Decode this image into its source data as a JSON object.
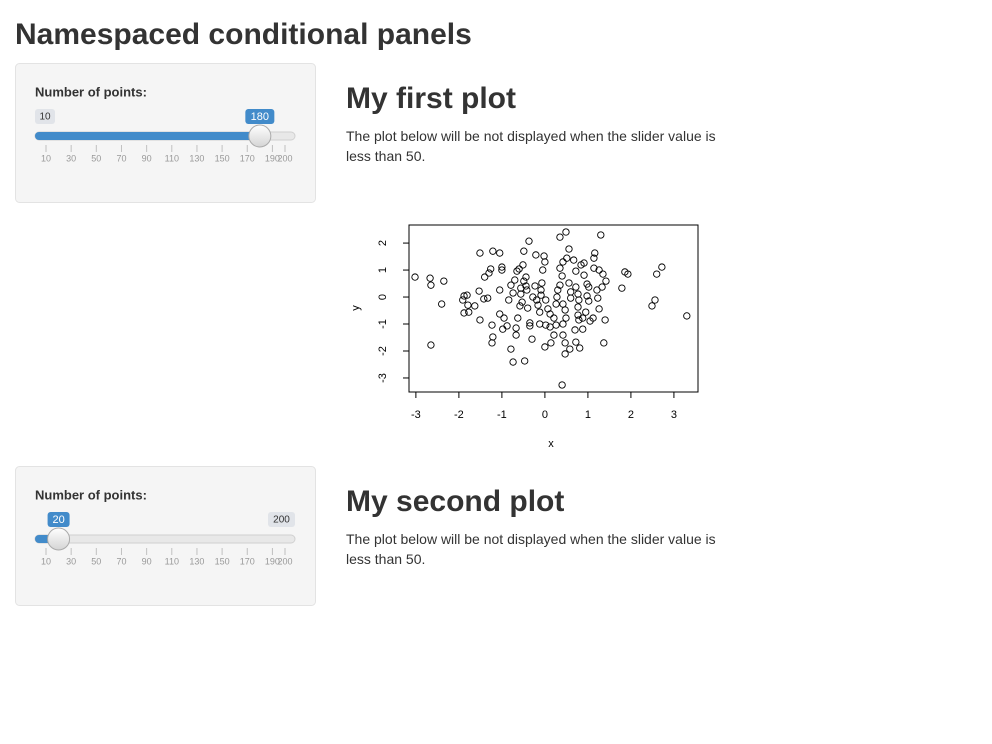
{
  "header": {
    "title": "Namespaced conditional panels"
  },
  "panels": [
    {
      "slider": {
        "label": "Number of points:",
        "min": 10,
        "max": 200,
        "value": 180,
        "ticks": [
          10,
          30,
          50,
          70,
          90,
          110,
          130,
          150,
          170,
          190,
          200
        ]
      },
      "heading": "My first plot",
      "text": "The plot below will be not displayed when the slider value is less than 50."
    },
    {
      "slider": {
        "label": "Number of points:",
        "min": 10,
        "max": 200,
        "value": 20,
        "ticks": [
          10,
          30,
          50,
          70,
          90,
          110,
          130,
          150,
          170,
          190,
          200
        ]
      },
      "heading": "My second plot",
      "text": "The plot below will be not displayed when the slider value is less than 50."
    }
  ],
  "chart_data": {
    "type": "scatter",
    "x_label": "x",
    "y_label": "y",
    "xlim": [
      -3.16,
      3.56
    ],
    "ylim": [
      -3.52,
      2.67
    ],
    "xticks": [
      -3,
      -2,
      -1,
      0,
      1,
      2,
      3
    ],
    "yticks": [
      -3,
      -2,
      -1,
      0,
      1,
      2
    ],
    "color": "#000000",
    "x": [
      -3.02,
      -2.67,
      -2.65,
      -2.35,
      -2.4,
      -2.65,
      -1.88,
      -1.81,
      -1.91,
      -1.79,
      -1.88,
      -1.77,
      -1.63,
      -1.53,
      -1.51,
      -1.21,
      -1.05,
      -1.3,
      -1.4,
      -1.26,
      -1.0,
      -1.0,
      -1.42,
      -1.33,
      -1.51,
      -1.23,
      -1.23,
      -1.21,
      -1.05,
      -0.95,
      -0.98,
      -1.05,
      -0.84,
      -0.74,
      -0.79,
      -0.7,
      -0.65,
      -0.6,
      -0.88,
      -0.74,
      -0.67,
      -0.67,
      -0.63,
      -0.58,
      -0.53,
      -0.56,
      -0.56,
      -0.49,
      -0.44,
      -0.42,
      -0.44,
      -0.51,
      -0.49,
      -0.37,
      -0.47,
      -0.35,
      -0.35,
      -0.3,
      -0.4,
      -0.28,
      -0.23,
      -0.19,
      -0.16,
      -0.12,
      -0.09,
      -0.07,
      -0.05,
      0.0,
      -0.02,
      -0.21,
      -0.09,
      0.02,
      0.07,
      0.12,
      0.12,
      0.14,
      0.0,
      -0.12,
      0.21,
      0.26,
      0.21,
      0.26,
      0.28,
      0.3,
      0.35,
      0.4,
      0.35,
      0.42,
      0.51,
      0.49,
      0.35,
      0.56,
      0.56,
      0.6,
      0.6,
      0.42,
      0.47,
      0.49,
      0.42,
      0.42,
      0.47,
      0.47,
      0.58,
      0.4,
      0.67,
      0.72,
      0.72,
      0.77,
      0.79,
      0.77,
      0.77,
      0.79,
      0.7,
      0.72,
      0.81,
      0.84,
      0.91,
      0.91,
      0.98,
      1.02,
      0.98,
      1.02,
      0.95,
      0.88,
      0.88,
      1.05,
      1.12,
      1.16,
      1.14,
      1.14,
      1.26,
      1.35,
      1.42,
      1.33,
      1.21,
      1.23,
      1.26,
      1.4,
      1.37,
      1.3,
      1.86,
      1.79,
      1.93,
      2.6,
      2.72,
      2.56,
      2.49,
      3.3,
      -0.79,
      0.02
    ],
    "values": [
      0.74,
      0.7,
      0.44,
      0.59,
      -0.26,
      -1.78,
      0.04,
      0.07,
      -0.11,
      -0.3,
      -0.59,
      -0.56,
      -0.33,
      0.22,
      1.63,
      1.7,
      1.63,
      0.89,
      0.74,
      1.04,
      1.11,
      1.0,
      -0.07,
      -0.04,
      -0.85,
      -1.04,
      -1.7,
      -1.48,
      -0.63,
      -0.78,
      -1.19,
      0.26,
      -0.11,
      0.15,
      0.44,
      0.63,
      0.96,
      1.04,
      -1.07,
      -2.41,
      -1.41,
      -1.15,
      -0.78,
      -0.33,
      -0.19,
      0.11,
      0.33,
      0.59,
      0.41,
      0.26,
      0.74,
      1.19,
      1.7,
      2.07,
      -2.37,
      -0.96,
      -1.07,
      -1.56,
      -0.41,
      0.0,
      0.41,
      -0.11,
      -0.3,
      -0.56,
      0.26,
      0.52,
      1.0,
      1.3,
      1.52,
      1.56,
      0.07,
      -0.11,
      -0.44,
      -0.63,
      -1.11,
      -1.7,
      -1.85,
      -1.0,
      -1.41,
      -1.04,
      -0.78,
      -0.26,
      0.0,
      0.26,
      0.44,
      0.78,
      1.07,
      1.3,
      1.44,
      2.41,
      2.22,
      1.78,
      0.52,
      0.19,
      -0.04,
      -0.26,
      -0.48,
      -0.78,
      -1.0,
      -1.41,
      -1.7,
      -2.11,
      -1.93,
      -3.26,
      1.37,
      0.96,
      0.37,
      0.11,
      -0.11,
      -0.37,
      -0.67,
      -0.85,
      -1.22,
      -1.67,
      -1.89,
      1.19,
      1.26,
      0.81,
      0.48,
      0.37,
      0.04,
      -0.15,
      -0.56,
      -0.78,
      -1.19,
      -0.89,
      -0.78,
      1.63,
      1.44,
      1.07,
      1.0,
      0.85,
      0.59,
      0.37,
      0.26,
      -0.04,
      -0.44,
      -0.85,
      -1.7,
      2.3,
      0.93,
      0.33,
      0.85,
      0.85,
      1.11,
      -0.11,
      -0.33,
      -0.7,
      -1.93,
      -1.04
    ]
  }
}
